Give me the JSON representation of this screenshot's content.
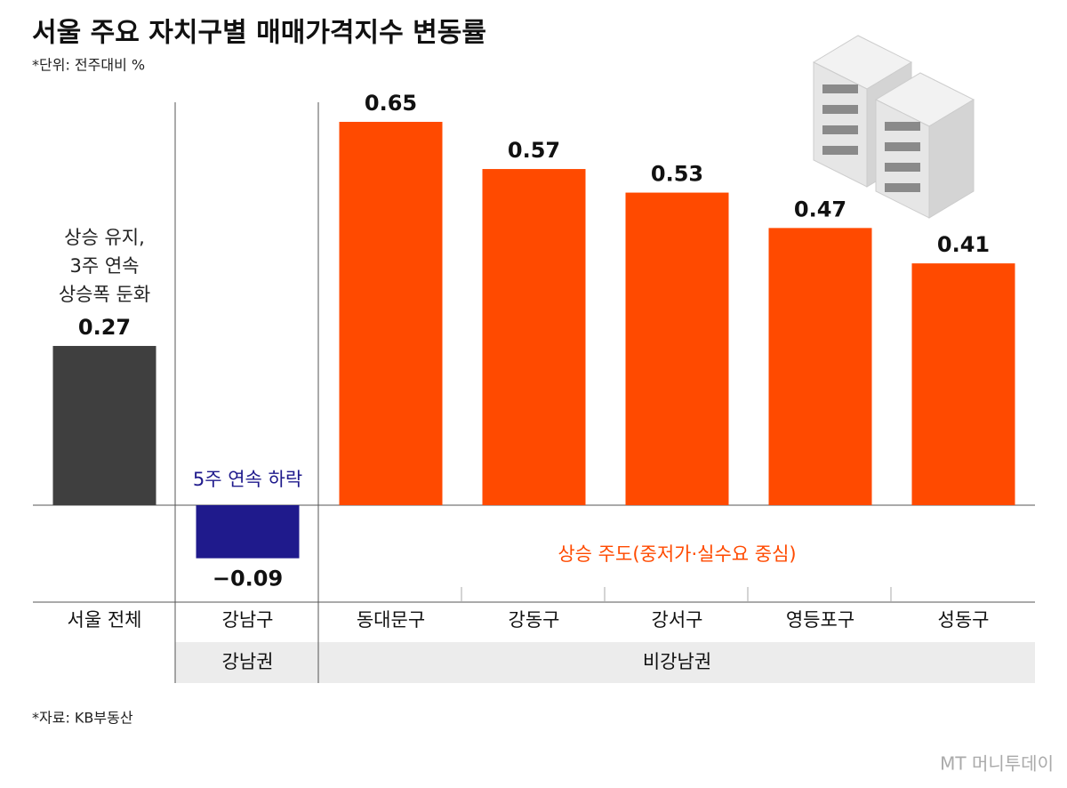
{
  "chart_data": {
    "type": "bar",
    "title": "서울 주요 자치구별 매매가격지수 변동률",
    "subtitle": "*단위: 전주대비 %",
    "categories": [
      "서울 전체",
      "강남구",
      "동대문구",
      "강동구",
      "강서구",
      "영등포구",
      "성동구"
    ],
    "values": [
      0.27,
      -0.09,
      0.65,
      0.57,
      0.53,
      0.47,
      0.41
    ],
    "value_labels": [
      "0.27",
      "−0.09",
      "0.65",
      "0.57",
      "0.53",
      "0.47",
      "0.41"
    ],
    "colors": [
      "#3f3f3f",
      "#1f1a8c",
      "#ff4a00",
      "#ff4a00",
      "#ff4a00",
      "#ff4a00",
      "#ff4a00"
    ],
    "groups": [
      "강남권",
      "비강남권"
    ],
    "annotations": {
      "seoul": {
        "lines": [
          "상승 유지,",
          "3주 연속",
          "상승폭 둔화"
        ],
        "color": "#222222"
      },
      "gangnam": {
        "text": "5주 연속 하락",
        "color": "#1f1a8c"
      },
      "others": {
        "text": "상승 주도(중저가·실수요 중심)",
        "color": "#ff4a00"
      }
    },
    "source": "*자료: KB부동산",
    "logo": "MT 머니투데이"
  }
}
